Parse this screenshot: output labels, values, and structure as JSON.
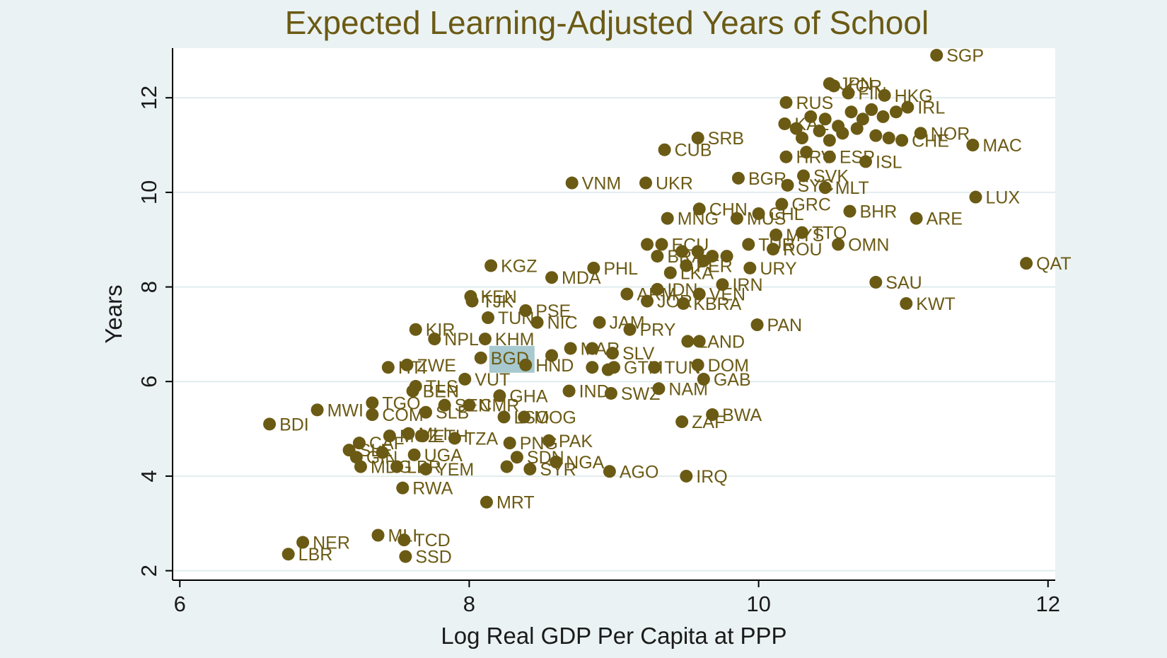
{
  "chart_data": {
    "type": "scatter",
    "title": "Expected Learning-Adjusted Years of School",
    "xlabel": "Log Real GDP Per Capita at PPP",
    "ylabel": "Years",
    "xlim": [
      5.95,
      12.05
    ],
    "ylim": [
      1.8,
      13.05
    ],
    "xticks": [
      6,
      8,
      10,
      12
    ],
    "yticks": [
      2,
      4,
      6,
      8,
      10,
      12
    ],
    "grid": true,
    "highlight_label": "BGD",
    "colors": {
      "marker": "#6b5a14",
      "highlight": "#a7c9cf",
      "plot_bg": "#ffffff",
      "page_bg": "#eaf2f3"
    },
    "points": [
      {
        "label": "SGP",
        "x": 11.23,
        "y": 12.9
      },
      {
        "label": "JPN",
        "x": 10.49,
        "y": 12.3
      },
      {
        "label": "KOR",
        "x": 10.52,
        "y": 12.25
      },
      {
        "label": "FIN",
        "x": 10.62,
        "y": 12.1
      },
      {
        "label": "HKG",
        "x": 10.87,
        "y": 12.05
      },
      {
        "label": "IRL",
        "x": 11.03,
        "y": 11.8
      },
      {
        "label": "RUS",
        "x": 10.19,
        "y": 11.9
      },
      {
        "label": "KAZ",
        "x": 10.18,
        "y": 11.45
      },
      {
        "label": "",
        "x": 10.36,
        "y": 11.6
      },
      {
        "label": "",
        "x": 10.46,
        "y": 11.55
      },
      {
        "label": "",
        "x": 10.55,
        "y": 11.4
      },
      {
        "label": "",
        "x": 10.64,
        "y": 11.7
      },
      {
        "label": "",
        "x": 10.72,
        "y": 11.55
      },
      {
        "label": "",
        "x": 10.78,
        "y": 11.75
      },
      {
        "label": "",
        "x": 10.86,
        "y": 11.6
      },
      {
        "label": "",
        "x": 10.95,
        "y": 11.7
      },
      {
        "label": "",
        "x": 10.68,
        "y": 11.35
      },
      {
        "label": "",
        "x": 10.58,
        "y": 11.25
      },
      {
        "label": "",
        "x": 10.42,
        "y": 11.3
      },
      {
        "label": "",
        "x": 10.3,
        "y": 11.15
      },
      {
        "label": "",
        "x": 10.26,
        "y": 11.35
      },
      {
        "label": "",
        "x": 10.49,
        "y": 11.1
      },
      {
        "label": "",
        "x": 10.81,
        "y": 11.2
      },
      {
        "label": "",
        "x": 10.9,
        "y": 11.15
      },
      {
        "label": "NOR",
        "x": 11.12,
        "y": 11.25
      },
      {
        "label": "CHE",
        "x": 10.99,
        "y": 11.1
      },
      {
        "label": "LUX",
        "x": 11.5,
        "y": 9.9
      },
      {
        "label": "MAC",
        "x": 11.48,
        "y": 11.0
      },
      {
        "label": "SRB",
        "x": 9.58,
        "y": 11.15
      },
      {
        "label": "CUB",
        "x": 9.35,
        "y": 10.9
      },
      {
        "label": "HRV",
        "x": 10.19,
        "y": 10.75
      },
      {
        "label": "",
        "x": 10.33,
        "y": 10.85
      },
      {
        "label": "ESP",
        "x": 10.49,
        "y": 10.75
      },
      {
        "label": "ISL",
        "x": 10.74,
        "y": 10.65
      },
      {
        "label": "SVK",
        "x": 10.31,
        "y": 10.35
      },
      {
        "label": "BGR",
        "x": 9.86,
        "y": 10.3
      },
      {
        "label": "SYC",
        "x": 10.2,
        "y": 10.15
      },
      {
        "label": "MLT",
        "x": 10.46,
        "y": 10.1
      },
      {
        "label": "VNM",
        "x": 8.71,
        "y": 10.2
      },
      {
        "label": "UKR",
        "x": 9.22,
        "y": 10.2
      },
      {
        "label": "GRC",
        "x": 10.16,
        "y": 9.75
      },
      {
        "label": "CHN",
        "x": 9.59,
        "y": 9.65
      },
      {
        "label": "CHL",
        "x": 10.0,
        "y": 9.55
      },
      {
        "label": "MUS",
        "x": 9.85,
        "y": 9.45
      },
      {
        "label": "MNG",
        "x": 9.37,
        "y": 9.45
      },
      {
        "label": "BHR",
        "x": 10.63,
        "y": 9.6
      },
      {
        "label": "ARE",
        "x": 11.09,
        "y": 9.45
      },
      {
        "label": "MYS",
        "x": 10.12,
        "y": 9.1
      },
      {
        "label": "TTO",
        "x": 10.3,
        "y": 9.15
      },
      {
        "label": "OMN",
        "x": 10.55,
        "y": 8.9
      },
      {
        "label": "ROU",
        "x": 10.1,
        "y": 8.8
      },
      {
        "label": "TUR",
        "x": 9.93,
        "y": 8.9
      },
      {
        "label": "",
        "x": 9.23,
        "y": 8.9
      },
      {
        "label": "ECU",
        "x": 9.33,
        "y": 8.9
      },
      {
        "label": "BRA",
        "x": 9.3,
        "y": 8.65
      },
      {
        "label": "",
        "x": 9.47,
        "y": 8.75
      },
      {
        "label": "",
        "x": 9.58,
        "y": 8.75
      },
      {
        "label": "",
        "x": 9.62,
        "y": 8.55
      },
      {
        "label": "",
        "x": 9.68,
        "y": 8.65
      },
      {
        "label": "",
        "x": 9.78,
        "y": 8.65
      },
      {
        "label": "LKA",
        "x": 9.39,
        "y": 8.3
      },
      {
        "label": "PER",
        "x": 9.5,
        "y": 8.45
      },
      {
        "label": "URY",
        "x": 9.94,
        "y": 8.4
      },
      {
        "label": "QAT",
        "x": 11.85,
        "y": 8.5
      },
      {
        "label": "SAU",
        "x": 10.81,
        "y": 8.1
      },
      {
        "label": "KWT",
        "x": 11.02,
        "y": 7.65
      },
      {
        "label": "IRN",
        "x": 9.75,
        "y": 8.05
      },
      {
        "label": "KGZ",
        "x": 8.15,
        "y": 8.45
      },
      {
        "label": "PHL",
        "x": 8.86,
        "y": 8.4
      },
      {
        "label": "MDA",
        "x": 8.57,
        "y": 8.2
      },
      {
        "label": "ARM",
        "x": 9.09,
        "y": 7.85
      },
      {
        "label": "IDN",
        "x": 9.3,
        "y": 7.95
      },
      {
        "label": "VEN",
        "x": 9.59,
        "y": 7.85
      },
      {
        "label": "JOR",
        "x": 9.23,
        "y": 7.7
      },
      {
        "label": "KBRA",
        "x": 9.48,
        "y": 7.65
      },
      {
        "label": "KEN",
        "x": 8.01,
        "y": 7.8
      },
      {
        "label": "TJK",
        "x": 8.02,
        "y": 7.7
      },
      {
        "label": "PSE",
        "x": 8.39,
        "y": 7.5
      },
      {
        "label": "TUN",
        "x": 8.13,
        "y": 7.35
      },
      {
        "label": "NIC",
        "x": 8.47,
        "y": 7.25
      },
      {
        "label": "JAM",
        "x": 8.9,
        "y": 7.25
      },
      {
        "label": "PRY",
        "x": 9.11,
        "y": 7.1
      },
      {
        "label": "PAN",
        "x": 9.99,
        "y": 7.2
      },
      {
        "label": "KIR",
        "x": 7.63,
        "y": 7.1
      },
      {
        "label": "NPL",
        "x": 7.76,
        "y": 6.9
      },
      {
        "label": "KHM",
        "x": 8.11,
        "y": 6.9
      },
      {
        "label": "LAND",
        "x": 9.51,
        "y": 6.85
      },
      {
        "label": "",
        "x": 9.59,
        "y": 6.85
      },
      {
        "label": "MAR",
        "x": 8.7,
        "y": 6.7
      },
      {
        "label": "SLV",
        "x": 8.99,
        "y": 6.6
      },
      {
        "label": "",
        "x": 8.85,
        "y": 6.7
      },
      {
        "label": "",
        "x": 8.57,
        "y": 6.55
      },
      {
        "label": "BGD",
        "x": 8.08,
        "y": 6.5
      },
      {
        "label": "HND",
        "x": 8.39,
        "y": 6.35
      },
      {
        "label": "",
        "x": 8.85,
        "y": 6.3
      },
      {
        "label": "",
        "x": 8.96,
        "y": 6.25
      },
      {
        "label": "GTM",
        "x": 9.0,
        "y": 6.3
      },
      {
        "label": "TUN",
        "x": 9.28,
        "y": 6.3
      },
      {
        "label": "DOM",
        "x": 9.58,
        "y": 6.35
      },
      {
        "label": "GAB",
        "x": 9.62,
        "y": 6.05
      },
      {
        "label": "HTI",
        "x": 7.44,
        "y": 6.3
      },
      {
        "label": "ZWE",
        "x": 7.57,
        "y": 6.35
      },
      {
        "label": "VUT",
        "x": 7.97,
        "y": 6.05
      },
      {
        "label": "TLS",
        "x": 7.63,
        "y": 5.9
      },
      {
        "label": "BEN",
        "x": 7.61,
        "y": 5.8
      },
      {
        "label": "GHA",
        "x": 8.21,
        "y": 5.7
      },
      {
        "label": "IND",
        "x": 8.69,
        "y": 5.8
      },
      {
        "label": "SWZ",
        "x": 8.98,
        "y": 5.75
      },
      {
        "label": "NAM",
        "x": 9.31,
        "y": 5.85
      },
      {
        "label": "TGO",
        "x": 7.33,
        "y": 5.55
      },
      {
        "label": "COM",
        "x": 7.33,
        "y": 5.3
      },
      {
        "label": "SLB",
        "x": 7.7,
        "y": 5.35
      },
      {
        "label": "SEN",
        "x": 7.83,
        "y": 5.5
      },
      {
        "label": "CMR",
        "x": 8.0,
        "y": 5.5
      },
      {
        "label": "LSO",
        "x": 8.24,
        "y": 5.25
      },
      {
        "label": "MOG",
        "x": 8.38,
        "y": 5.25
      },
      {
        "label": "BWA",
        "x": 9.68,
        "y": 5.3
      },
      {
        "label": "ZAF",
        "x": 9.47,
        "y": 5.15
      },
      {
        "label": "MWI",
        "x": 6.95,
        "y": 5.4
      },
      {
        "label": "BDI",
        "x": 6.62,
        "y": 5.1
      },
      {
        "label": "MOZ",
        "x": 7.45,
        "y": 4.85
      },
      {
        "label": "MLI",
        "x": 7.58,
        "y": 4.9
      },
      {
        "label": "ETH",
        "x": 7.68,
        "y": 4.85
      },
      {
        "label": "TZA",
        "x": 7.9,
        "y": 4.8
      },
      {
        "label": "PAK",
        "x": 8.55,
        "y": 4.75
      },
      {
        "label": "PNG",
        "x": 8.28,
        "y": 4.7
      },
      {
        "label": "CAF",
        "x": 7.24,
        "y": 4.7
      },
      {
        "label": "SLE",
        "x": 7.17,
        "y": 4.55
      },
      {
        "label": "GIN",
        "x": 7.22,
        "y": 4.4
      },
      {
        "label": "MDG",
        "x": 7.25,
        "y": 4.2
      },
      {
        "label": "",
        "x": 7.4,
        "y": 4.5
      },
      {
        "label": "UGA",
        "x": 7.62,
        "y": 4.45
      },
      {
        "label": "LBR2",
        "x": 7.5,
        "y": 4.2
      },
      {
        "label": "YEM",
        "x": 7.7,
        "y": 4.15
      },
      {
        "label": "SDN",
        "x": 8.33,
        "y": 4.4
      },
      {
        "label": "NGA",
        "x": 8.6,
        "y": 4.3
      },
      {
        "label": "SYR",
        "x": 8.42,
        "y": 4.15
      },
      {
        "label": "",
        "x": 8.26,
        "y": 4.2
      },
      {
        "label": "AGO",
        "x": 8.97,
        "y": 4.1
      },
      {
        "label": "IRQ",
        "x": 9.5,
        "y": 4.0
      },
      {
        "label": "RWA",
        "x": 7.54,
        "y": 3.75
      },
      {
        "label": "MRT",
        "x": 8.12,
        "y": 3.45
      },
      {
        "label": "NER",
        "x": 6.85,
        "y": 2.6
      },
      {
        "label": "LBR",
        "x": 6.75,
        "y": 2.35
      },
      {
        "label": "MLI2",
        "x": 7.37,
        "y": 2.75
      },
      {
        "label": "TCD",
        "x": 7.55,
        "y": 2.65
      },
      {
        "label": "SSD",
        "x": 7.56,
        "y": 2.3
      }
    ]
  }
}
